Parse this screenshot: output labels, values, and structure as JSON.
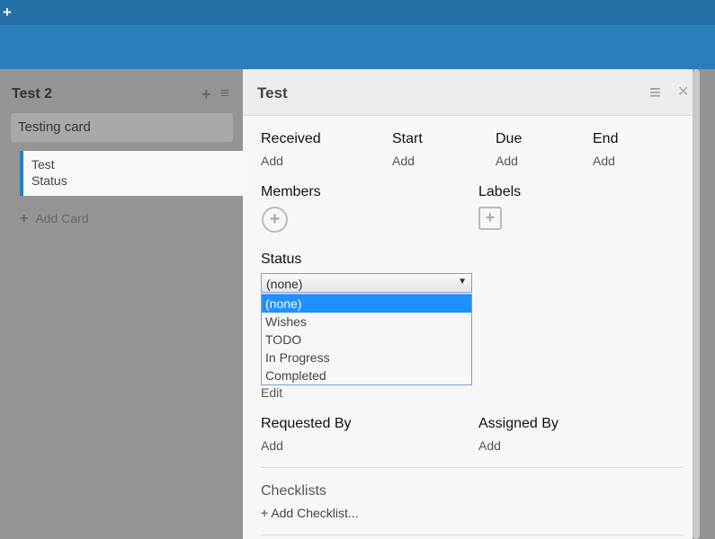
{
  "topbar": {
    "add_icon": "plus-icon"
  },
  "list": {
    "title": "Test 2",
    "cards": [
      "Testing card"
    ],
    "open_card": {
      "title": "Test",
      "status": "Status"
    },
    "add_card": "Add Card"
  },
  "details": {
    "title": "Test",
    "dates": [
      {
        "label": "Received",
        "value": "Add"
      },
      {
        "label": "Start",
        "value": "Add"
      },
      {
        "label": "Due",
        "value": "Add"
      },
      {
        "label": "End",
        "value": "Add"
      }
    ],
    "members": "Members",
    "labels": "Labels",
    "status": {
      "label": "Status",
      "selected": "(none)",
      "options": [
        "(none)",
        "Wishes",
        "TODO",
        "In Progress",
        "Completed"
      ],
      "edit": "Edit"
    },
    "requested_by": {
      "label": "Requested By",
      "value": "Add"
    },
    "assigned_by": {
      "label": "Assigned By",
      "value": "Add"
    },
    "checklists": {
      "label": "Checklists",
      "add": "Add Checklist..."
    }
  }
}
